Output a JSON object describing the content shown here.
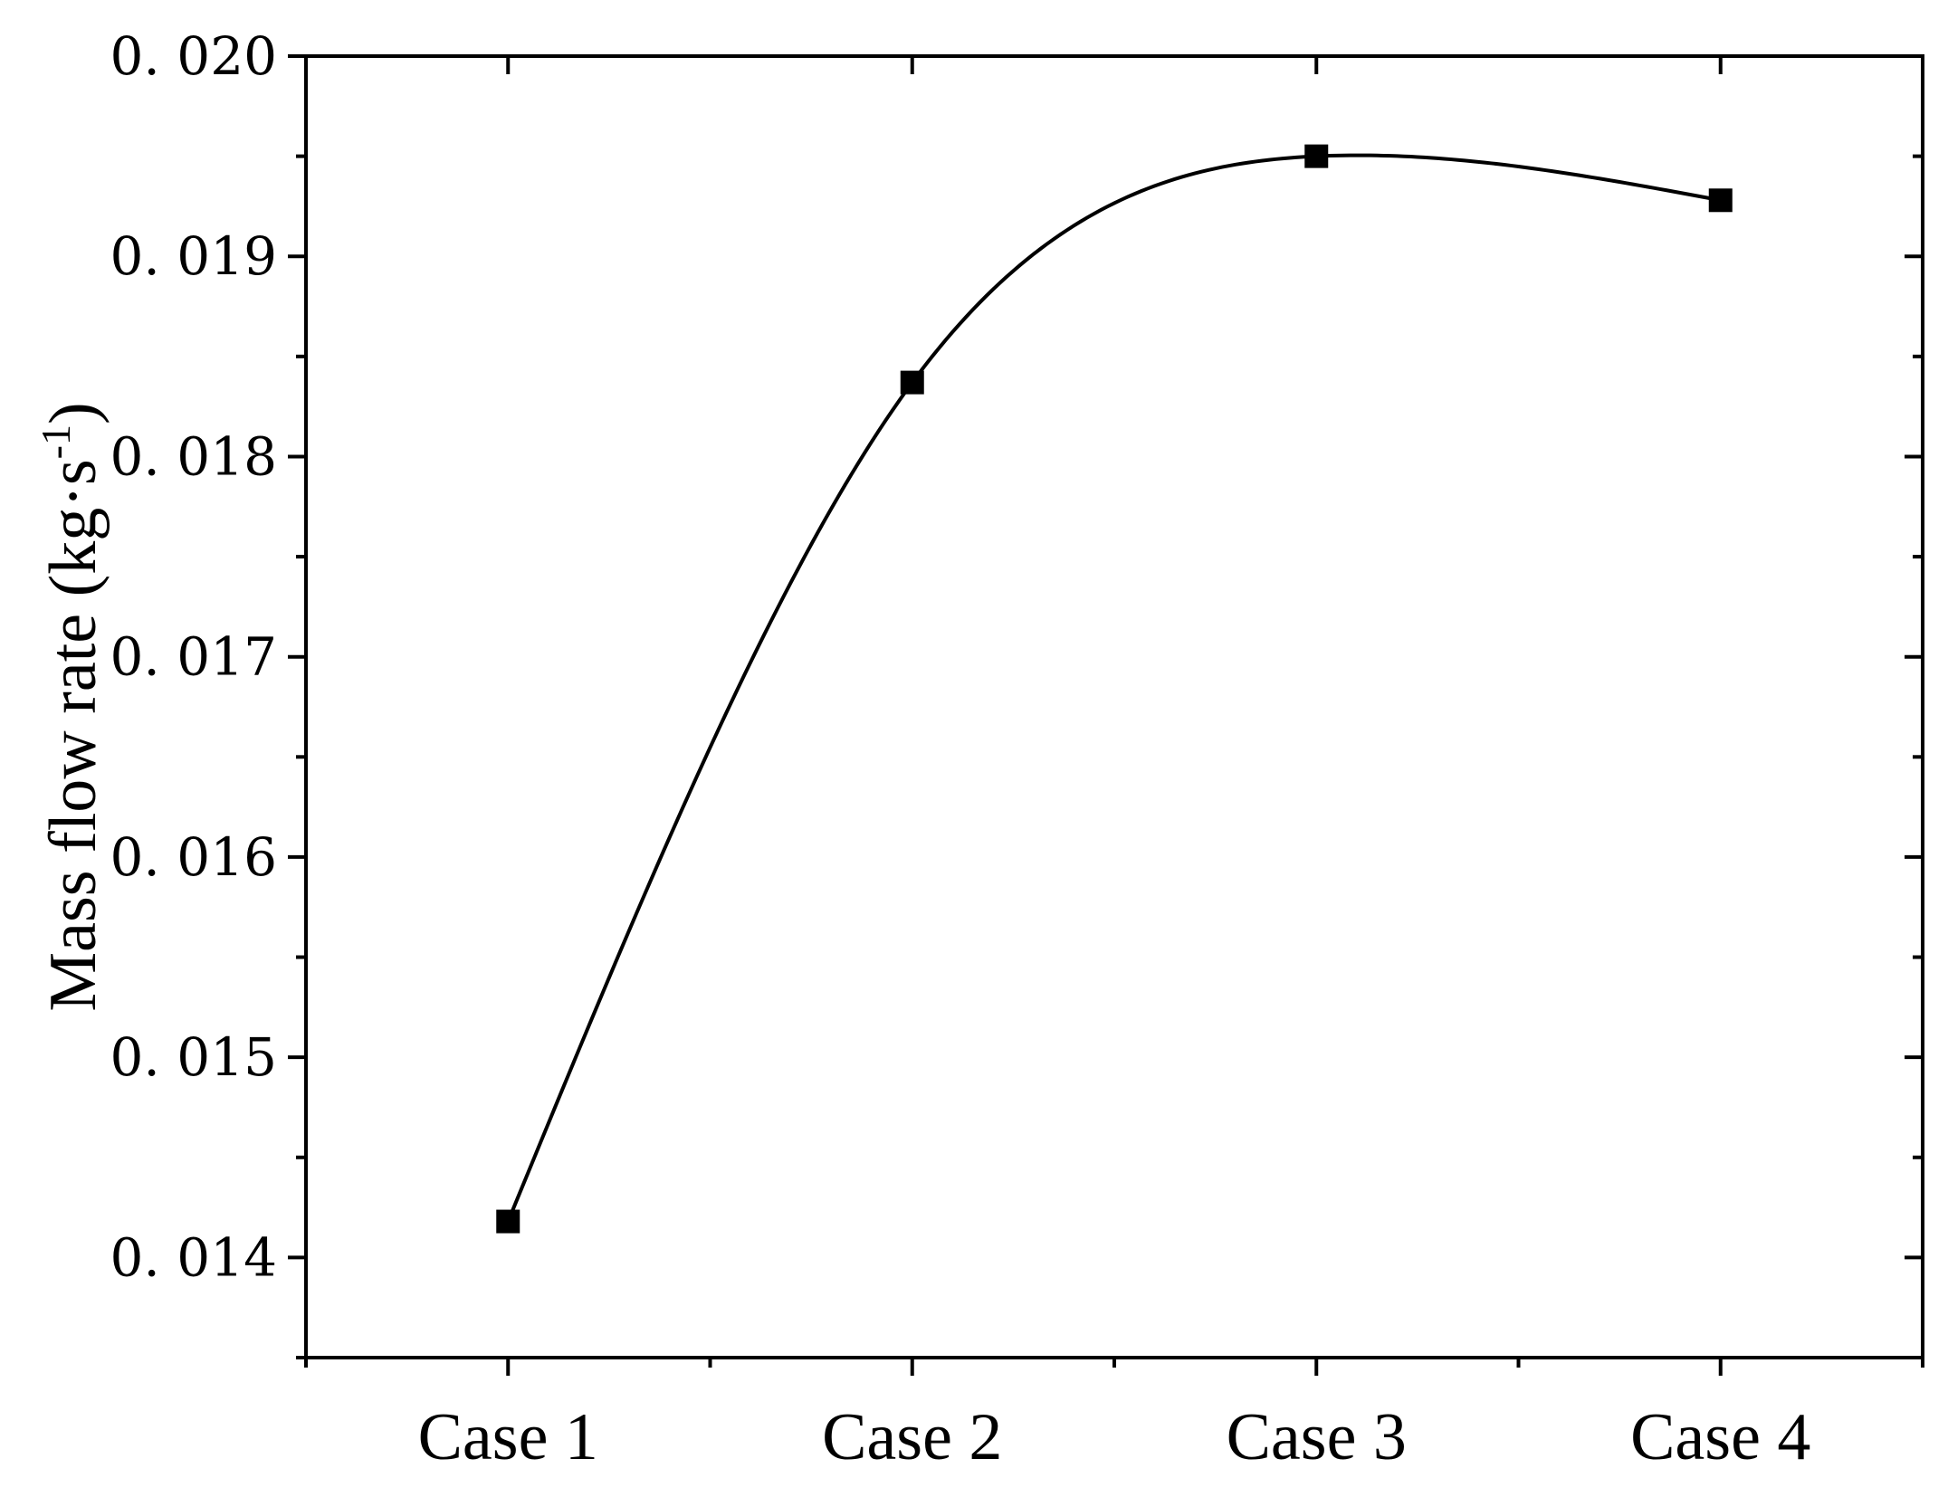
{
  "chart_data": {
    "type": "line",
    "title": "",
    "xlabel": "",
    "ylabel": "Mass flow rate (kg·s-1)",
    "ylabel_parts": {
      "main": "Mass flow rate (kg·s",
      "sup": "-1",
      "close": ")"
    },
    "categories": [
      "Case 1",
      "Case 2",
      "Case 3",
      "Case 4"
    ],
    "series": [
      {
        "values": [
          0.01418,
          0.01837,
          0.0195,
          0.01928
        ]
      }
    ],
    "ylim": [
      0.0135,
      0.02
    ],
    "yticks": [
      0.014,
      0.015,
      0.016,
      0.017,
      0.018,
      0.019,
      0.02
    ],
    "ytick_labels": [
      "0. 014",
      "0. 015",
      "0. 016",
      "0. 017",
      "0. 018",
      "0. 019",
      "0. 020"
    ],
    "marker": "square",
    "line": "smooth spline",
    "grid": false,
    "legend": "none",
    "color": "#000000"
  }
}
